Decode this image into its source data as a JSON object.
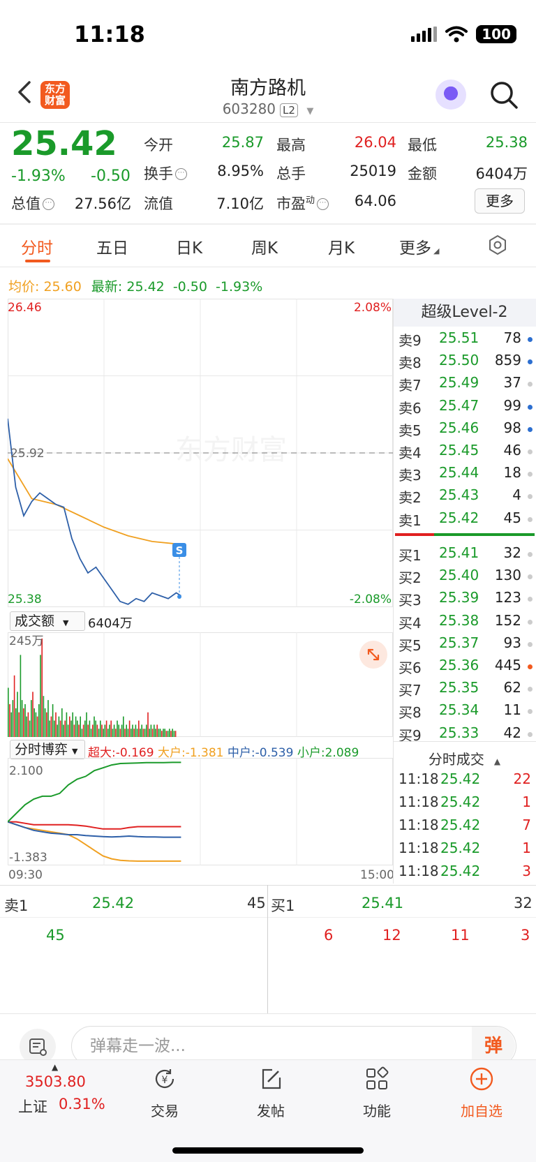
{
  "status_bar": {
    "time": "11:18",
    "battery": "100"
  },
  "header": {
    "logo_text": "东方财富",
    "stock_name": "南方路机",
    "stock_code": "603280",
    "level_tag": "L2"
  },
  "quote": {
    "price": "25.42",
    "change_pct": "-1.93%",
    "change_amt": "-0.50",
    "fields": [
      {
        "label": "今开",
        "value": "25.87",
        "color": "#1a9a2a"
      },
      {
        "label": "最高",
        "value": "26.04",
        "color": "#e02020"
      },
      {
        "label": "最低",
        "value": "25.38",
        "color": "#1a9a2a"
      },
      {
        "label": "换手",
        "value": "8.95%",
        "color": "#222222"
      },
      {
        "label": "总手",
        "value": "25019",
        "color": "#222222"
      },
      {
        "label": "金额",
        "value": "6404万",
        "color": "#222222"
      },
      {
        "label": "总值",
        "value": "27.56亿",
        "color": "#222222"
      },
      {
        "label": "流值",
        "value": "7.10亿",
        "color": "#222222"
      },
      {
        "label": "市盈",
        "value": "64.06",
        "color": "#222222"
      }
    ],
    "pe_superscript": "动",
    "more_label": "更多"
  },
  "tabs": [
    "分时",
    "五日",
    "日K",
    "周K",
    "月K",
    "更多"
  ],
  "avg_line": {
    "avg_label": "均价:",
    "avg_value": "25.60",
    "latest_label": "最新:",
    "latest_value": "25.42",
    "change_amt": "-0.50",
    "change_pct": "-1.93%"
  },
  "price_chart": {
    "y_high": "26.46",
    "y_low": "25.38",
    "pct_high": "2.08%",
    "pct_low": "-2.08%",
    "prev_close": "25.92",
    "watermark": "东方财富",
    "signal_tag": "S"
  },
  "volume": {
    "selector": "成交额",
    "amount": "6404万",
    "y_max": "245万"
  },
  "game": {
    "selector": "分时博弈",
    "legend": [
      {
        "label": "超大:",
        "value": "-0.169",
        "color": "#e02020"
      },
      {
        "label": "大户:",
        "value": "-1.381",
        "color": "#f0a020"
      },
      {
        "label": "中户:",
        "value": "-0.539",
        "color": "#2d5fa8"
      },
      {
        "label": "小户:",
        "value": "2.089",
        "color": "#1a9a2a"
      }
    ],
    "y_max": "2.100",
    "y_min": "-1.383",
    "x_start": "09:30",
    "x_end": "15:00"
  },
  "order_book": {
    "title": "超级Level-2",
    "asks": [
      {
        "label": "卖9",
        "price": "25.51",
        "vol": "78",
        "dot": "#2d6fd0"
      },
      {
        "label": "卖8",
        "price": "25.50",
        "vol": "859",
        "dot": "#2d6fd0"
      },
      {
        "label": "卖7",
        "price": "25.49",
        "vol": "37",
        "dot": "#cccccc"
      },
      {
        "label": "卖6",
        "price": "25.47",
        "vol": "99",
        "dot": "#2d6fd0"
      },
      {
        "label": "卖5",
        "price": "25.46",
        "vol": "98",
        "dot": "#2d6fd0"
      },
      {
        "label": "卖4",
        "price": "25.45",
        "vol": "46",
        "dot": "#cccccc"
      },
      {
        "label": "卖3",
        "price": "25.44",
        "vol": "18",
        "dot": "#cccccc"
      },
      {
        "label": "卖2",
        "price": "25.43",
        "vol": "4",
        "dot": "#cccccc"
      },
      {
        "label": "卖1",
        "price": "25.42",
        "vol": "45",
        "dot": "#cccccc"
      }
    ],
    "bids": [
      {
        "label": "买1",
        "price": "25.41",
        "vol": "32",
        "dot": "#cccccc"
      },
      {
        "label": "买2",
        "price": "25.40",
        "vol": "130",
        "dot": "#cccccc"
      },
      {
        "label": "买3",
        "price": "25.39",
        "vol": "123",
        "dot": "#cccccc"
      },
      {
        "label": "买4",
        "price": "25.38",
        "vol": "152",
        "dot": "#cccccc"
      },
      {
        "label": "买5",
        "price": "25.37",
        "vol": "93",
        "dot": "#cccccc"
      },
      {
        "label": "买6",
        "price": "25.36",
        "vol": "445",
        "dot": "#f25a1f"
      },
      {
        "label": "买7",
        "price": "25.35",
        "vol": "62",
        "dot": "#cccccc"
      },
      {
        "label": "买8",
        "price": "25.34",
        "vol": "11",
        "dot": "#cccccc"
      },
      {
        "label": "买9",
        "price": "25.33",
        "vol": "42",
        "dot": "#cccccc"
      }
    ]
  },
  "trades": {
    "title": "分时成交",
    "rows": [
      {
        "time": "11:18",
        "price": "25.42",
        "vol": "22"
      },
      {
        "time": "11:18",
        "price": "25.42",
        "vol": "1"
      },
      {
        "time": "11:18",
        "price": "25.42",
        "vol": "7"
      },
      {
        "time": "11:18",
        "price": "25.42",
        "vol": "1"
      },
      {
        "time": "11:18",
        "price": "25.42",
        "vol": "3"
      }
    ]
  },
  "queue": {
    "sell_label": "卖1",
    "sell_price": "25.42",
    "sell_vol": "45",
    "buy_label": "买1",
    "buy_price": "25.41",
    "buy_vol": "32",
    "sell_items": [
      "45"
    ],
    "buy_items": [
      "6",
      "12",
      "11",
      "3"
    ]
  },
  "danmu": {
    "placeholder": "弹幕走一波...",
    "button": "弹"
  },
  "bottom_nav": {
    "index_value": "3503.80",
    "index_name": "上证",
    "index_pct": "0.31%",
    "items": [
      {
        "label": "交易",
        "icon": "yen-cycle-icon"
      },
      {
        "label": "发帖",
        "icon": "edit-icon"
      },
      {
        "label": "功能",
        "icon": "grid-icon"
      },
      {
        "label": "加自选",
        "icon": "plus-circle-icon"
      }
    ]
  },
  "chart_data": [
    {
      "type": "line",
      "title": "",
      "x_range": [
        "09:30",
        "15:00"
      ],
      "ylim": [
        25.38,
        26.46
      ],
      "reference": 25.92,
      "series": [
        {
          "name": "最新",
          "color": "#2d5fa8",
          "x": [
            "09:30",
            "09:35",
            "09:40",
            "09:45",
            "09:50",
            "09:55",
            "10:00",
            "10:05",
            "10:10",
            "10:15",
            "10:20",
            "10:25",
            "10:30",
            "10:35",
            "10:40",
            "10:45",
            "10:50",
            "10:55",
            "11:00",
            "11:05",
            "11:10",
            "11:15",
            "11:18"
          ],
          "values": [
            26.04,
            25.8,
            25.7,
            25.75,
            25.78,
            25.76,
            25.74,
            25.73,
            25.62,
            25.55,
            25.5,
            25.52,
            25.48,
            25.44,
            25.4,
            25.39,
            25.41,
            25.4,
            25.43,
            25.42,
            25.41,
            25.43,
            25.42
          ]
        },
        {
          "name": "均价",
          "color": "#f0a020",
          "x": [
            "09:30",
            "09:45",
            "10:00",
            "10:15",
            "10:30",
            "10:45",
            "11:00",
            "11:18"
          ],
          "values": [
            25.9,
            25.76,
            25.74,
            25.7,
            25.66,
            25.63,
            25.61,
            25.6
          ]
        }
      ]
    },
    {
      "type": "bar",
      "title": "成交额",
      "ylabel": "",
      "y_max_label": "245万",
      "values": [
        120,
        80,
        60,
        90,
        150,
        70,
        110,
        60,
        200,
        90,
        70,
        80,
        50,
        60,
        40,
        90,
        110,
        70,
        60,
        50,
        80,
        200,
        240,
        100,
        70,
        60,
        90,
        40,
        50,
        80,
        40,
        60,
        30,
        50,
        40,
        70,
        30,
        40,
        60,
        30,
        50,
        40,
        60,
        30,
        50,
        40,
        30,
        50,
        20,
        30,
        40,
        60,
        30,
        40,
        20,
        30,
        50,
        40,
        30,
        20,
        40,
        30,
        20,
        30,
        40,
        20,
        30,
        40,
        20,
        30,
        20,
        40,
        30,
        20,
        30,
        50,
        20,
        30,
        20,
        40,
        20,
        30,
        20,
        30,
        20,
        40,
        20,
        30,
        20,
        20,
        30,
        60,
        20,
        30,
        20,
        30,
        20,
        30,
        20,
        20,
        15,
        20,
        20,
        15,
        15,
        20,
        15,
        20,
        15,
        15
      ]
    },
    {
      "type": "line",
      "title": "分时博弈",
      "ylim": [
        -1.383,
        2.1
      ],
      "x_range": [
        "09:30",
        "15:00"
      ],
      "series": [
        {
          "name": "超大",
          "color": "#e02020",
          "values": [
            0,
            0,
            -0.05,
            -0.1,
            -0.1,
            -0.1,
            -0.1,
            -0.1,
            -0.12,
            -0.15,
            -0.2,
            -0.25,
            -0.25,
            -0.25,
            -0.2,
            -0.17,
            -0.17,
            -0.17,
            -0.17,
            -0.17,
            -0.169
          ]
        },
        {
          "name": "大户",
          "color": "#f0a020",
          "values": [
            0,
            -0.1,
            -0.2,
            -0.25,
            -0.3,
            -0.35,
            -0.4,
            -0.45,
            -0.6,
            -0.8,
            -1.0,
            -1.2,
            -1.3,
            -1.35,
            -1.37,
            -1.38,
            -1.38,
            -1.38,
            -1.38,
            -1.381,
            -1.381
          ]
        },
        {
          "name": "中户",
          "color": "#2d5fa8",
          "values": [
            0,
            -0.1,
            -0.2,
            -0.3,
            -0.35,
            -0.4,
            -0.42,
            -0.45,
            -0.45,
            -0.48,
            -0.5,
            -0.52,
            -0.53,
            -0.52,
            -0.5,
            -0.52,
            -0.53,
            -0.53,
            -0.54,
            -0.54,
            -0.539
          ]
        },
        {
          "name": "小户",
          "color": "#1a9a2a",
          "values": [
            0,
            0.3,
            0.6,
            0.8,
            0.9,
            0.9,
            1.0,
            1.3,
            1.5,
            1.6,
            1.8,
            1.9,
            2.0,
            2.05,
            2.06,
            2.07,
            2.08,
            2.08,
            2.08,
            2.09,
            2.089
          ]
        }
      ]
    }
  ]
}
